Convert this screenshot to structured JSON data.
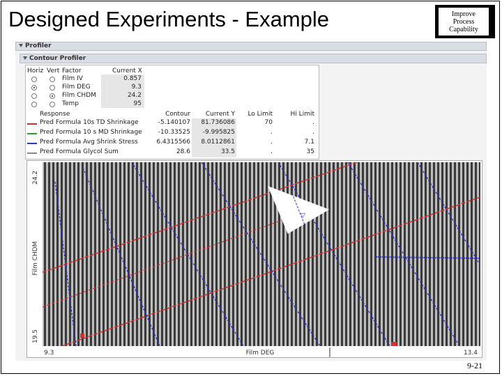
{
  "slide": {
    "title": "Designed Experiments - Example",
    "logo_lines": [
      "Improve",
      "Process",
      "Capability"
    ],
    "page_number": "9-21"
  },
  "profiler": {
    "header": "Profiler",
    "contour_header": "Contour Profiler",
    "factor_columns": {
      "horiz": "Horiz",
      "vert": "Vert",
      "factor": "Factor",
      "current_x": "Current X"
    },
    "factors": [
      {
        "name": "Film IV",
        "current_x": "0.857",
        "horiz_selected": false,
        "vert_selected": false
      },
      {
        "name": "Film DEG",
        "current_x": "9.3",
        "horiz_selected": true,
        "vert_selected": false
      },
      {
        "name": "Film CHDM",
        "current_x": "24.2",
        "horiz_selected": false,
        "vert_selected": true
      },
      {
        "name": "Temp",
        "current_x": "95",
        "horiz_selected": false,
        "vert_selected": false
      }
    ],
    "response_columns": {
      "response": "Response",
      "contour": "Contour",
      "current_y": "Current Y",
      "lo_limit": "Lo Limit",
      "hi_limit": "Hi Limit"
    },
    "responses": [
      {
        "name": "Pred Formula 10s TD Shrinkage",
        "contour": "-5.140107",
        "current_y": "81.736086",
        "lo_limit": "70",
        "hi_limit": ".",
        "color": "#d03030"
      },
      {
        "name": "Pred Formula 10 s MD Shrinkage",
        "contour": "-10.33525",
        "current_y": "-9.995825",
        "lo_limit": ".",
        "hi_limit": ".",
        "color": "#2a9a3a"
      },
      {
        "name": "Pred Formula Avg Shrink Stress",
        "contour": "6.4315566",
        "current_y": "8.0112861",
        "lo_limit": ".",
        "hi_limit": "7.1",
        "color": "#2a3ad0"
      },
      {
        "name": "Pred Formula Glycol Sum",
        "contour": "28.6",
        "current_y": "33.5",
        "lo_limit": ".",
        "hi_limit": "35",
        "color": "#888888"
      }
    ],
    "plot": {
      "y_axis_label": "Film CHDM",
      "x_axis_label": "Film DEG",
      "y_min_label": "19.5",
      "y_max_label": "24.2",
      "x_min_label": "9.3",
      "x_max_label": "13.4",
      "colors": {
        "stripe_dark": "#3a3a3a",
        "stripe_light": "#bdbdbd",
        "contour_red": "#d83030",
        "contour_blue": "#3030c8"
      }
    }
  }
}
